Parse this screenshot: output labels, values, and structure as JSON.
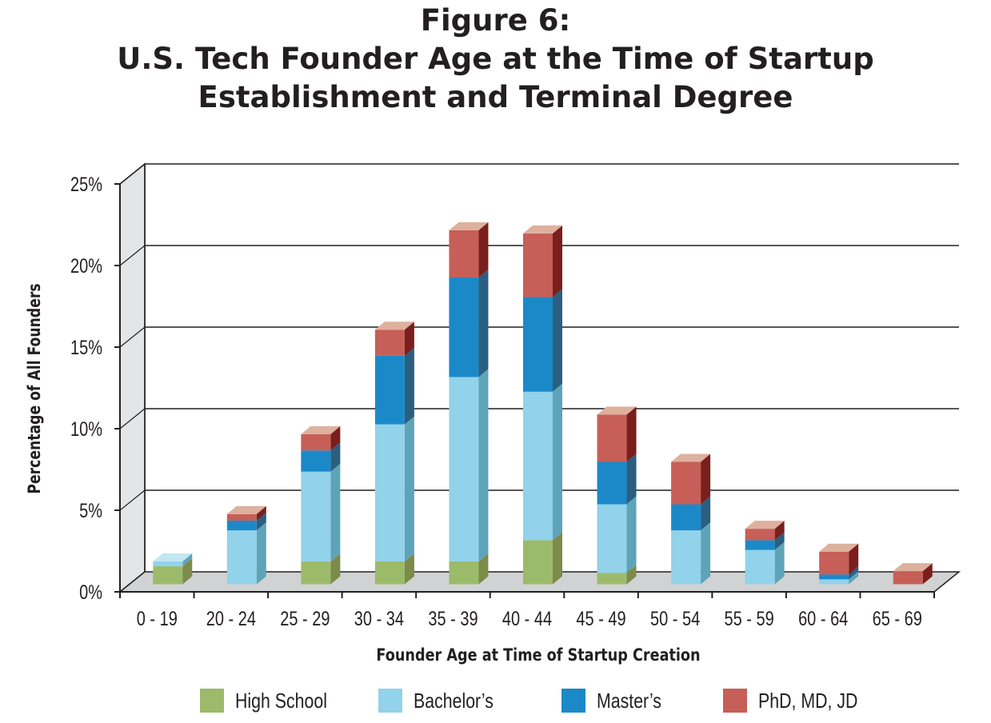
{
  "figure": {
    "label": "Figure 6:",
    "title_line1": "U.S. Tech Founder Age at the Time of Startup",
    "title_line2": "Establishment and Terminal Degree"
  },
  "chart_data": {
    "type": "bar",
    "stacked": true,
    "style": "3d",
    "title": "U.S. Tech Founder Age at the Time of Startup Establishment and Terminal Degree",
    "xlabel": "Founder Age at Time of Startup Creation",
    "ylabel": "Percentage of All Founders",
    "ylim": [
      0,
      25
    ],
    "yticks": [
      "0%",
      "5%",
      "10%",
      "15%",
      "20%",
      "25%"
    ],
    "ytick_values": [
      0,
      5,
      10,
      15,
      20,
      25
    ],
    "grid": true,
    "legend_position": "bottom",
    "categories": [
      "0 - 19",
      "20 - 24",
      "25 - 29",
      "30 - 34",
      "35 - 39",
      "40 - 44",
      "45 - 49",
      "50 - 54",
      "55 - 59",
      "60 - 64",
      "65 - 69"
    ],
    "series": [
      {
        "name": "High School",
        "color": "#9bbb6a",
        "side": "#7c8b49",
        "top": "#c4d89e",
        "values": [
          1.1,
          0,
          1.4,
          1.4,
          1.4,
          2.7,
          0.7,
          0,
          0,
          0,
          0
        ]
      },
      {
        "name": "Bachelor’s",
        "color": "#92d2ea",
        "side": "#5ea4b8",
        "top": "#c2e6f3",
        "values": [
          0.3,
          3.3,
          5.5,
          8.4,
          11.3,
          9.1,
          4.2,
          3.3,
          2.1,
          0.3,
          0
        ]
      },
      {
        "name": "Master’s",
        "color": "#1b89c8",
        "side": "#2a5f80",
        "top": "#6ab2dc",
        "values": [
          0,
          0.6,
          1.3,
          4.2,
          6.1,
          5.8,
          2.6,
          1.6,
          0.6,
          0.3,
          0
        ]
      },
      {
        "name": "PhD, MD, JD",
        "color": "#c65f57",
        "side": "#7a1f1c",
        "top": "#deb09e",
        "values": [
          0,
          0.4,
          1.0,
          1.6,
          2.9,
          3.9,
          2.9,
          2.6,
          0.7,
          1.4,
          0.8
        ]
      }
    ]
  },
  "legend": {
    "items": [
      "High School",
      "Bachelor’s",
      "Master’s",
      "PhD, MD, JD"
    ]
  }
}
